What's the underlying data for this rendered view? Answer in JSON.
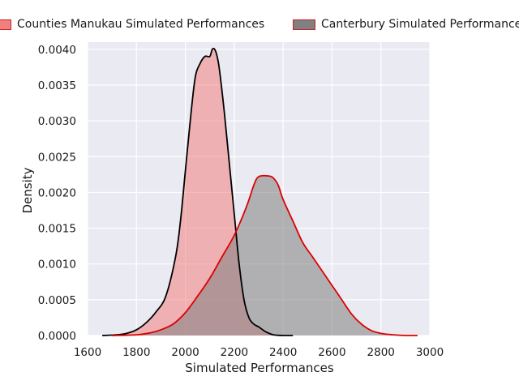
{
  "chart_data": {
    "type": "area",
    "title": "",
    "xlabel": "Simulated Performances",
    "ylabel": "Density",
    "xlim": [
      1600,
      3000
    ],
    "ylim": [
      0,
      0.0041
    ],
    "xticks": [
      "1600",
      "1800",
      "2000",
      "2200",
      "2400",
      "2600",
      "2800",
      "3000"
    ],
    "yticks": [
      "0.0000",
      "0.0005",
      "0.0010",
      "0.0015",
      "0.0020",
      "0.0025",
      "0.0030",
      "0.0035",
      "0.0040"
    ],
    "grid": true,
    "legend_position": "top",
    "series": [
      {
        "name": "Counties Manukau Simulated Performances",
        "fill": "#f08080",
        "line": "#000000",
        "x": [
          1660,
          1720,
          1760,
          1800,
          1840,
          1880,
          1920,
          1960,
          1980,
          2000,
          2020,
          2040,
          2060,
          2080,
          2100,
          2110,
          2120,
          2130,
          2140,
          2160,
          2180,
          2200,
          2220,
          2240,
          2260,
          2280,
          2300,
          2330,
          2360,
          2400,
          2440
        ],
        "y": [
          0,
          1e-05,
          3e-05,
          8e-05,
          0.00018,
          0.00033,
          0.00055,
          0.0011,
          0.0016,
          0.0023,
          0.003,
          0.0036,
          0.0038,
          0.0039,
          0.0039,
          0.004,
          0.004,
          0.0039,
          0.0037,
          0.0031,
          0.0024,
          0.0017,
          0.001,
          0.0005,
          0.00025,
          0.00016,
          0.00012,
          5e-05,
          1e-05,
          0,
          0
        ]
      },
      {
        "name": "Canterbury Simulated Performances",
        "fill": "#808080",
        "line": "#dd0000",
        "x": [
          1700,
          1800,
          1860,
          1900,
          1950,
          2000,
          2050,
          2100,
          2150,
          2200,
          2250,
          2280,
          2300,
          2340,
          2360,
          2380,
          2400,
          2440,
          2480,
          2520,
          2560,
          2600,
          2640,
          2680,
          2720,
          2760,
          2800,
          2850,
          2900,
          2950
        ],
        "y": [
          0,
          1e-05,
          4e-05,
          8e-05,
          0.00016,
          0.00032,
          0.00055,
          0.0008,
          0.0011,
          0.0014,
          0.0018,
          0.0021,
          0.00222,
          0.00223,
          0.0022,
          0.0021,
          0.0019,
          0.0016,
          0.0013,
          0.0011,
          0.0009,
          0.0007,
          0.0005,
          0.0003,
          0.00016,
          7e-05,
          3e-05,
          1e-05,
          0,
          0
        ]
      }
    ]
  }
}
